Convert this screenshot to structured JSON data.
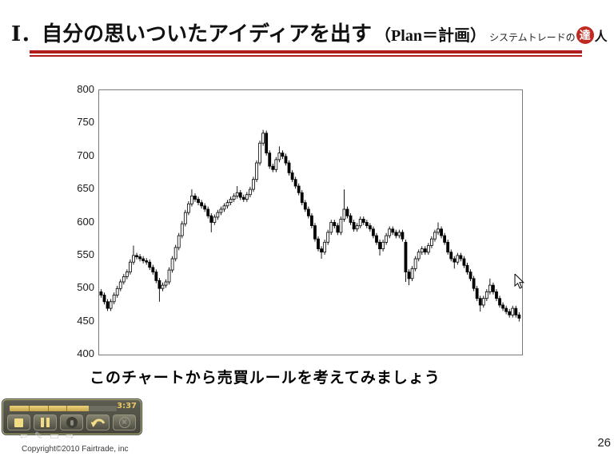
{
  "header": {
    "title_main": "Ⅰ．自分の思いついたアイディアを出す",
    "title_sub": "（Plan＝計画）",
    "brand_text": "システムトレードの",
    "brand_logo_char": "達",
    "brand_suffix": "人",
    "rule_color": "#b01c1c"
  },
  "chart_data": {
    "type": "candlestick",
    "title": "",
    "xlabel": "",
    "ylabel": "",
    "ylim": [
      400,
      800
    ],
    "yticks": [
      800,
      750,
      700,
      650,
      600,
      550,
      500,
      450,
      400
    ],
    "grid": false,
    "legend": false,
    "candle_style": {
      "up_fill": "#ffffff",
      "down_fill": "#000000",
      "stroke": "#000000"
    },
    "candles": [
      [
        495,
        499,
        486,
        490
      ],
      [
        490,
        494,
        476,
        480
      ],
      [
        480,
        484,
        466,
        470
      ],
      [
        470,
        484,
        466,
        480
      ],
      [
        480,
        494,
        476,
        490
      ],
      [
        490,
        504,
        486,
        500
      ],
      [
        500,
        514,
        496,
        510
      ],
      [
        510,
        522,
        506,
        518
      ],
      [
        518,
        529,
        514,
        525
      ],
      [
        525,
        544,
        521,
        540
      ],
      [
        540,
        565,
        536,
        550
      ],
      [
        550,
        554,
        544,
        548
      ],
      [
        548,
        552,
        541,
        545
      ],
      [
        545,
        549,
        538,
        542
      ],
      [
        542,
        546,
        536,
        540
      ],
      [
        540,
        544,
        528,
        532
      ],
      [
        532,
        536,
        521,
        525
      ],
      [
        525,
        529,
        508,
        512
      ],
      [
        512,
        516,
        480,
        500
      ],
      [
        500,
        509,
        496,
        505
      ],
      [
        505,
        514,
        501,
        510
      ],
      [
        510,
        532,
        506,
        528
      ],
      [
        528,
        549,
        524,
        545
      ],
      [
        545,
        566,
        541,
        562
      ],
      [
        562,
        584,
        558,
        580
      ],
      [
        580,
        602,
        576,
        598
      ],
      [
        598,
        619,
        594,
        615
      ],
      [
        615,
        632,
        611,
        628
      ],
      [
        628,
        650,
        624,
        640
      ],
      [
        640,
        644,
        631,
        635
      ],
      [
        635,
        639,
        626,
        630
      ],
      [
        630,
        634,
        621,
        625
      ],
      [
        625,
        629,
        616,
        620
      ],
      [
        620,
        624,
        606,
        610
      ],
      [
        610,
        614,
        585,
        600
      ],
      [
        600,
        612,
        596,
        608
      ],
      [
        608,
        619,
        604,
        615
      ],
      [
        615,
        624,
        611,
        620
      ],
      [
        620,
        629,
        616,
        625
      ],
      [
        625,
        634,
        621,
        630
      ],
      [
        630,
        639,
        626,
        635
      ],
      [
        635,
        644,
        631,
        640
      ],
      [
        640,
        655,
        636,
        645
      ],
      [
        645,
        649,
        634,
        638
      ],
      [
        638,
        642,
        631,
        635
      ],
      [
        635,
        646,
        631,
        642
      ],
      [
        642,
        654,
        638,
        650
      ],
      [
        650,
        669,
        646,
        665
      ],
      [
        665,
        694,
        661,
        690
      ],
      [
        690,
        724,
        686,
        720
      ],
      [
        720,
        740,
        716,
        735
      ],
      [
        735,
        739,
        701,
        705
      ],
      [
        705,
        709,
        681,
        685
      ],
      [
        685,
        689,
        676,
        680
      ],
      [
        680,
        699,
        676,
        695
      ],
      [
        695,
        715,
        691,
        705
      ],
      [
        705,
        709,
        696,
        700
      ],
      [
        700,
        704,
        686,
        690
      ],
      [
        690,
        694,
        671,
        675
      ],
      [
        675,
        679,
        661,
        665
      ],
      [
        665,
        669,
        651,
        655
      ],
      [
        655,
        659,
        641,
        645
      ],
      [
        645,
        649,
        626,
        630
      ],
      [
        630,
        634,
        616,
        620
      ],
      [
        620,
        624,
        606,
        610
      ],
      [
        610,
        614,
        591,
        595
      ],
      [
        595,
        599,
        571,
        575
      ],
      [
        575,
        579,
        556,
        560
      ],
      [
        560,
        564,
        545,
        555
      ],
      [
        555,
        574,
        551,
        570
      ],
      [
        570,
        589,
        566,
        585
      ],
      [
        585,
        604,
        581,
        600
      ],
      [
        600,
        604,
        591,
        595
      ],
      [
        595,
        599,
        581,
        585
      ],
      [
        585,
        609,
        581,
        605
      ],
      [
        605,
        650,
        601,
        620
      ],
      [
        620,
        624,
        606,
        610
      ],
      [
        610,
        614,
        596,
        600
      ],
      [
        600,
        604,
        586,
        590
      ],
      [
        590,
        599,
        586,
        595
      ],
      [
        595,
        609,
        591,
        605
      ],
      [
        605,
        609,
        596,
        600
      ],
      [
        600,
        604,
        591,
        595
      ],
      [
        595,
        599,
        586,
        590
      ],
      [
        590,
        594,
        576,
        580
      ],
      [
        580,
        584,
        566,
        570
      ],
      [
        570,
        574,
        550,
        560
      ],
      [
        560,
        574,
        556,
        570
      ],
      [
        570,
        584,
        566,
        580
      ],
      [
        580,
        594,
        576,
        590
      ],
      [
        590,
        594,
        581,
        585
      ],
      [
        585,
        589,
        576,
        580
      ],
      [
        580,
        589,
        576,
        585
      ],
      [
        585,
        589,
        571,
        575
      ],
      [
        570,
        574,
        510,
        525
      ],
      [
        525,
        529,
        505,
        515
      ],
      [
        515,
        534,
        511,
        530
      ],
      [
        530,
        549,
        526,
        545
      ],
      [
        545,
        559,
        541,
        555
      ],
      [
        555,
        564,
        551,
        560
      ],
      [
        560,
        564,
        551,
        555
      ],
      [
        555,
        569,
        551,
        565
      ],
      [
        565,
        579,
        561,
        575
      ],
      [
        575,
        589,
        571,
        585
      ],
      [
        585,
        600,
        581,
        590
      ],
      [
        590,
        594,
        576,
        580
      ],
      [
        580,
        584,
        566,
        570
      ],
      [
        570,
        574,
        551,
        555
      ],
      [
        555,
        559,
        541,
        545
      ],
      [
        545,
        549,
        530,
        540
      ],
      [
        540,
        554,
        536,
        550
      ],
      [
        550,
        554,
        541,
        545
      ],
      [
        545,
        549,
        531,
        535
      ],
      [
        535,
        539,
        521,
        525
      ],
      [
        525,
        529,
        511,
        515
      ],
      [
        515,
        519,
        496,
        500
      ],
      [
        500,
        504,
        481,
        485
      ],
      [
        485,
        489,
        465,
        475
      ],
      [
        475,
        489,
        471,
        485
      ],
      [
        485,
        499,
        481,
        495
      ],
      [
        495,
        515,
        491,
        505
      ],
      [
        505,
        509,
        491,
        495
      ],
      [
        495,
        499,
        481,
        485
      ],
      [
        485,
        489,
        471,
        475
      ],
      [
        475,
        479,
        466,
        470
      ],
      [
        470,
        474,
        461,
        465
      ],
      [
        465,
        469,
        456,
        460
      ],
      [
        460,
        474,
        456,
        470
      ],
      [
        470,
        474,
        456,
        460
      ],
      [
        460,
        464,
        450,
        455
      ]
    ]
  },
  "caption": "このチャートから売買ルールを考えてみましょう",
  "player": {
    "time": "3:37",
    "progress_pct": 74,
    "accent_color": "#e9c963",
    "bg_color": "#53524a",
    "buttons": [
      {
        "name": "stop"
      },
      {
        "name": "pause"
      },
      {
        "name": "microphone"
      },
      {
        "name": "undo"
      },
      {
        "name": "close",
        "glyph": "×"
      }
    ]
  },
  "footer": {
    "copyright": "Copyright©2010 Fairtrade, inc",
    "page_number": "26",
    "presenter_icons": [
      {
        "name": "back-arrow",
        "glyph": "⇦"
      },
      {
        "name": "pen",
        "glyph": "✎"
      },
      {
        "name": "slide",
        "glyph": "▭"
      },
      {
        "name": "forward-arrow",
        "glyph": "⇨"
      }
    ]
  }
}
